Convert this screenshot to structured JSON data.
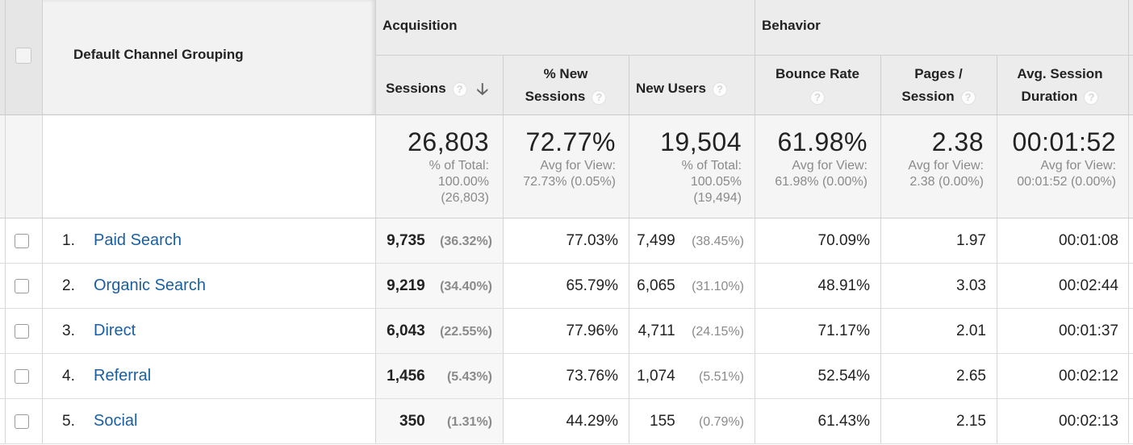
{
  "header": {
    "dimension_label": "Default Channel Grouping",
    "group_acquisition": "Acquisition",
    "group_behavior": "Behavior",
    "col_sessions": "Sessions",
    "col_new_sessions_1": "% New",
    "col_new_sessions_2": "Sessions",
    "col_new_users": "New Users",
    "col_bounce_1": "Bounce Rate",
    "col_pages_1": "Pages /",
    "col_pages_2": "Session",
    "col_duration_1": "Avg. Session",
    "col_duration_2": "Duration",
    "help_glyph": "?",
    "sort_glyph": "🡣"
  },
  "totals": {
    "sessions": {
      "value": "26,803",
      "sub1": "% of Total:",
      "sub2": "100.00%",
      "sub3": "(26,803)"
    },
    "new_sessions": {
      "value": "72.77%",
      "sub1": "Avg for View:",
      "sub2": "72.73% (0.05%)"
    },
    "new_users": {
      "value": "19,504",
      "sub1": "% of Total:",
      "sub2": "100.05%",
      "sub3": "(19,494)"
    },
    "bounce": {
      "value": "61.98%",
      "sub1": "Avg for View:",
      "sub2": "61.98% (0.00%)"
    },
    "pages": {
      "value": "2.38",
      "sub1": "Avg for View:",
      "sub2": "2.38 (0.00%)"
    },
    "duration": {
      "value": "00:01:52",
      "sub1": "Avg for View:",
      "sub2": "00:01:52 (0.00%)"
    }
  },
  "rows": [
    {
      "num": "1.",
      "name": "Paid Search",
      "sessions": "9,735",
      "sessions_pct": "(36.32%)",
      "new_sessions": "77.03%",
      "new_users": "7,499",
      "new_users_pct": "(38.45%)",
      "bounce": "70.09%",
      "pages": "1.97",
      "duration": "00:01:08"
    },
    {
      "num": "2.",
      "name": "Organic Search",
      "sessions": "9,219",
      "sessions_pct": "(34.40%)",
      "new_sessions": "65.79%",
      "new_users": "6,065",
      "new_users_pct": "(31.10%)",
      "bounce": "48.91%",
      "pages": "3.03",
      "duration": "00:02:44"
    },
    {
      "num": "3.",
      "name": "Direct",
      "sessions": "6,043",
      "sessions_pct": "(22.55%)",
      "new_sessions": "77.96%",
      "new_users": "4,711",
      "new_users_pct": "(24.15%)",
      "bounce": "71.17%",
      "pages": "2.01",
      "duration": "00:01:37"
    },
    {
      "num": "4.",
      "name": "Referral",
      "sessions": "1,456",
      "sessions_pct": "(5.43%)",
      "new_sessions": "73.76%",
      "new_users": "1,074",
      "new_users_pct": "(5.51%)",
      "bounce": "52.54%",
      "pages": "2.65",
      "duration": "00:02:12"
    },
    {
      "num": "5.",
      "name": "Social",
      "sessions": "350",
      "sessions_pct": "(1.31%)",
      "new_sessions": "44.29%",
      "new_users": "155",
      "new_users_pct": "(0.79%)",
      "bounce": "61.43%",
      "pages": "2.15",
      "duration": "00:02:13"
    }
  ],
  "colors": {
    "link": "#1a5fa1",
    "header_bg": "#ececec",
    "muted": "#8a8a8a"
  }
}
